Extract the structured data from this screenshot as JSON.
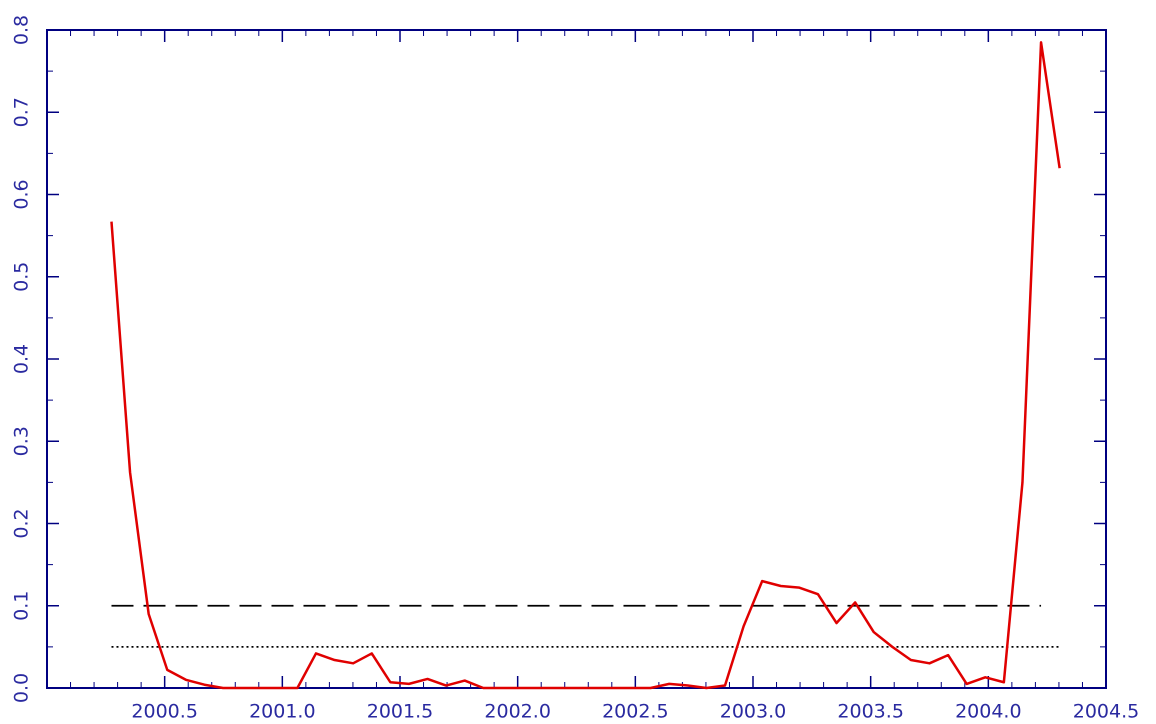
{
  "chart_data": {
    "type": "line",
    "x": [
      2000.274,
      2000.353,
      2000.432,
      2000.511,
      2000.59,
      2000.669,
      2000.748,
      2000.827,
      2000.906,
      2000.985,
      2001.064,
      2001.143,
      2001.222,
      2001.301,
      2001.38,
      2001.459,
      2001.538,
      2001.617,
      2001.696,
      2001.775,
      2001.854,
      2001.933,
      2002.012,
      2002.091,
      2002.17,
      2002.249,
      2002.328,
      2002.407,
      2002.486,
      2002.565,
      2002.644,
      2002.723,
      2002.802,
      2002.881,
      2002.96,
      2003.039,
      2003.118,
      2003.197,
      2003.276,
      2003.355,
      2003.434,
      2003.513,
      2003.592,
      2003.671,
      2003.75,
      2003.829,
      2003.908,
      2003.987,
      2004.066,
      2004.145,
      2004.224,
      2004.303
    ],
    "series": [
      {
        "color": "#e00000",
        "values": [
          0.567,
          0.262,
          0.09,
          0.022,
          0.01,
          0.004,
          0,
          0,
          0,
          0,
          0,
          0.042,
          0.034,
          0.03,
          0.042,
          0.007,
          0.005,
          0.011,
          0.003,
          0.009,
          0,
          0,
          0,
          0,
          0,
          0,
          0,
          0,
          0,
          0,
          0.005,
          0.003,
          0,
          0.003,
          0.075,
          0.13,
          0.124,
          0.122,
          0.114,
          0.079,
          0.104,
          0.068,
          0.05,
          0.034,
          0.03,
          0.04,
          0.005,
          0.013,
          0.007,
          0.25,
          0.785,
          0.632
        ]
      }
    ],
    "reference_lines": [
      {
        "value": 0.1,
        "style": "dashed",
        "x": [
          2000.274,
          2004.224
        ]
      },
      {
        "value": 0.05,
        "style": "dotted",
        "x": [
          2000.274,
          2004.303
        ]
      }
    ],
    "xlim": [
      2000.0,
      2004.5
    ],
    "ylim": [
      0,
      0.8
    ],
    "xticks": [
      {
        "value": 2000.5,
        "label": "2000.5"
      },
      {
        "value": 2001.0,
        "label": "2001.0"
      },
      {
        "value": 2001.5,
        "label": "2001.5"
      },
      {
        "value": 2002.0,
        "label": "2002.0"
      },
      {
        "value": 2002.5,
        "label": "2002.5"
      },
      {
        "value": 2003.0,
        "label": "2003.0"
      },
      {
        "value": 2003.5,
        "label": "2003.5"
      },
      {
        "value": 2004.0,
        "label": "2004.0"
      },
      {
        "value": 2004.5,
        "label": "2004.5"
      }
    ],
    "yticks": [
      {
        "value": 0,
        "label": "0.0"
      },
      0.1,
      0.2,
      0.3,
      0.4,
      0.5,
      0.6,
      0.7,
      0.8
    ],
    "axis_color": "#000080"
  }
}
